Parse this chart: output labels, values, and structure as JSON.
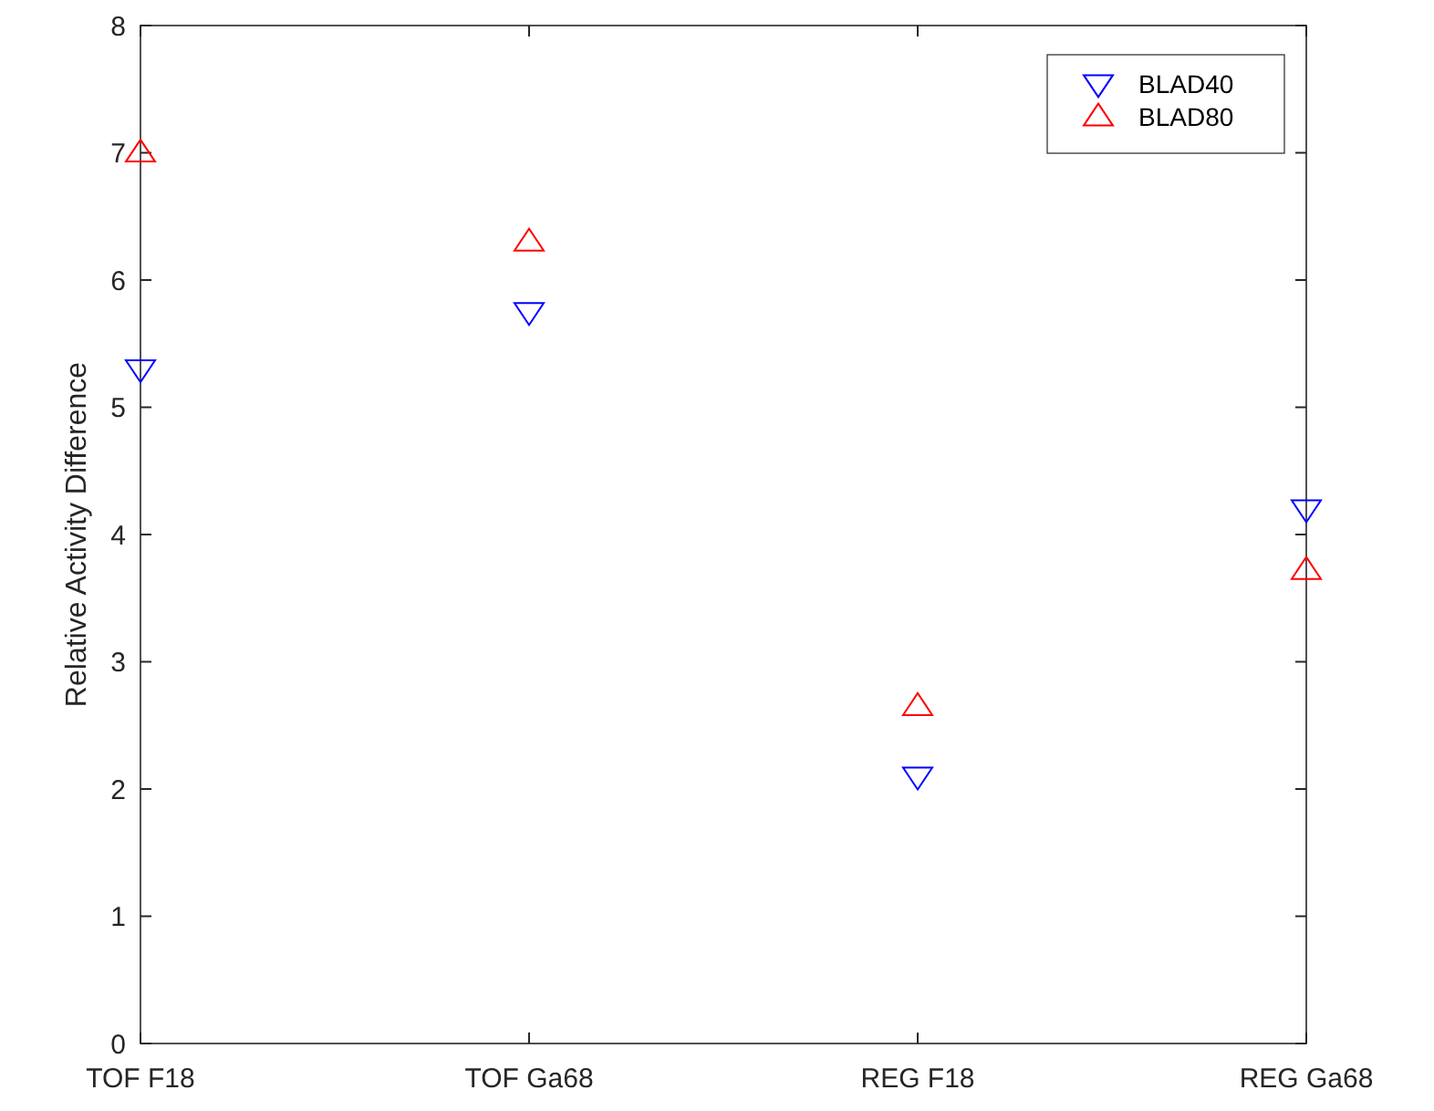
{
  "chart_data": {
    "type": "scatter",
    "ylabel": "Relative Activity Difference",
    "categories": [
      "TOF F18",
      "TOF Ga68",
      "REG F18",
      "REG Ga68"
    ],
    "series": [
      {
        "name": "BLAD40",
        "color": "#0000ff",
        "marker": "triangle-down",
        "values": [
          5.3,
          5.75,
          2.1,
          4.2
        ]
      },
      {
        "name": "BLAD80",
        "color": "#ff0000",
        "marker": "triangle",
        "values": [
          7.0,
          6.3,
          2.65,
          3.72
        ]
      }
    ],
    "ylim": [
      0,
      8
    ],
    "yticks": [
      0,
      1,
      2,
      3,
      4,
      5,
      6,
      7,
      8
    ],
    "grid": false,
    "legend": "top right"
  }
}
